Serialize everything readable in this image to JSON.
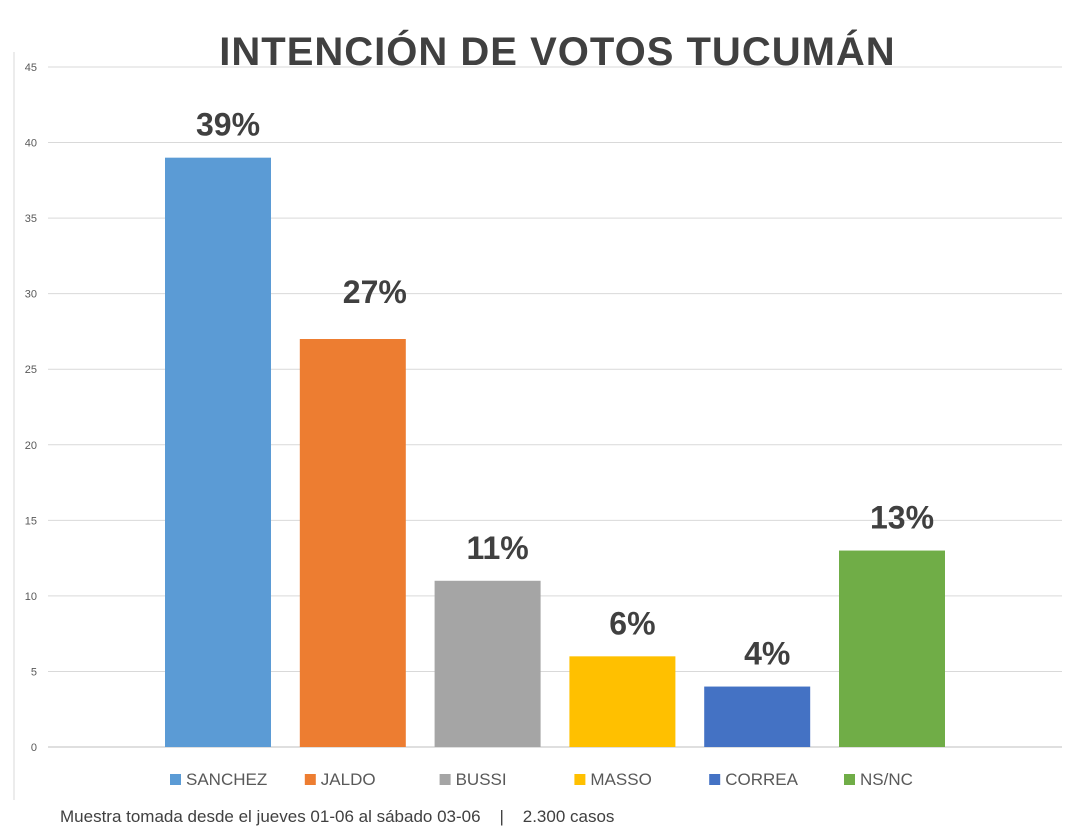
{
  "chart_data": {
    "type": "bar",
    "title": "INTENCIÓN DE VOTOS TUCUMÁN",
    "xlabel": "",
    "ylabel": "",
    "ylim": [
      0,
      45
    ],
    "yticks": [
      0,
      5,
      10,
      15,
      20,
      25,
      30,
      35,
      40,
      45
    ],
    "grid": true,
    "legend_position": "bottom",
    "categories": [
      "SANCHEZ",
      "JALDO",
      "BUSSI",
      "MASSO",
      "CORREA",
      "NS/NC"
    ],
    "values": [
      39,
      27,
      11,
      6,
      4,
      13
    ],
    "data_labels": [
      "39%",
      "27%",
      "11%",
      "6%",
      "4%",
      "13%"
    ],
    "colors": [
      "#5b9bd5",
      "#ed7d31",
      "#a5a5a5",
      "#ffc000",
      "#4472c4",
      "#70ad47"
    ]
  },
  "footer": {
    "note": "Muestra tomada desde el jueves 01-06 al sábado 03-06    |    2.300 casos"
  }
}
